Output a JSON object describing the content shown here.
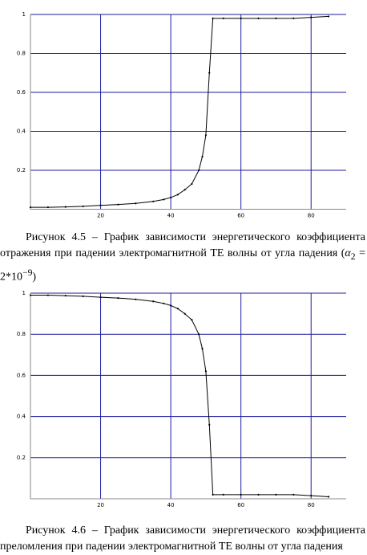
{
  "chart_data": [
    {
      "type": "line",
      "color": "#000000",
      "grid_color": "#1c1c9c",
      "grid": true,
      "x": [
        0,
        5,
        10,
        15,
        20,
        25,
        30,
        35,
        38,
        40,
        42,
        44,
        46,
        48,
        49,
        50,
        51,
        52,
        55,
        60,
        65,
        70,
        75,
        80,
        85
      ],
      "values": [
        0.01,
        0.01,
        0.012,
        0.015,
        0.02,
        0.024,
        0.03,
        0.04,
        0.05,
        0.06,
        0.075,
        0.1,
        0.13,
        0.2,
        0.27,
        0.38,
        0.7,
        0.98,
        0.98,
        0.98,
        0.98,
        0.98,
        0.98,
        0.985,
        0.99
      ],
      "xlim": [
        0,
        90
      ],
      "xticks": [
        20,
        40,
        60,
        80
      ],
      "ylim": [
        0,
        1
      ],
      "yticks": [
        0.2,
        0.4,
        0.6,
        0.8,
        1
      ]
    },
    {
      "type": "line",
      "color": "#000000",
      "grid_color": "#1c1c9c",
      "grid": true,
      "x": [
        0,
        5,
        10,
        15,
        20,
        25,
        30,
        35,
        38,
        40,
        42,
        44,
        46,
        48,
        49,
        50,
        51,
        52,
        55,
        60,
        65,
        70,
        75,
        80,
        85
      ],
      "values": [
        0.99,
        0.99,
        0.988,
        0.985,
        0.98,
        0.976,
        0.97,
        0.96,
        0.95,
        0.94,
        0.925,
        0.9,
        0.87,
        0.8,
        0.73,
        0.62,
        0.36,
        0.02,
        0.02,
        0.02,
        0.02,
        0.02,
        0.02,
        0.015,
        0.01
      ],
      "xlim": [
        0,
        90
      ],
      "xticks": [
        20,
        40,
        60,
        80
      ],
      "ylim": [
        0,
        1
      ],
      "yticks": [
        0.2,
        0.4,
        0.6,
        0.8,
        1
      ]
    }
  ],
  "captions": [
    {
      "prefix": "Рисунок 4.5 – График зависимости энергетического коэффициента отражения при падении электромагнитной ТЕ волны от угла падения (",
      "symbol": "α",
      "sub": "2",
      "mid": " = 2*10",
      "sup": "−9",
      "suffix": ")"
    },
    {
      "prefix": "Рисунок 4.6 – График зависимости энергетического коэффициента преломления при падении электромагнитной ТЕ волны от угла падения"
    }
  ]
}
